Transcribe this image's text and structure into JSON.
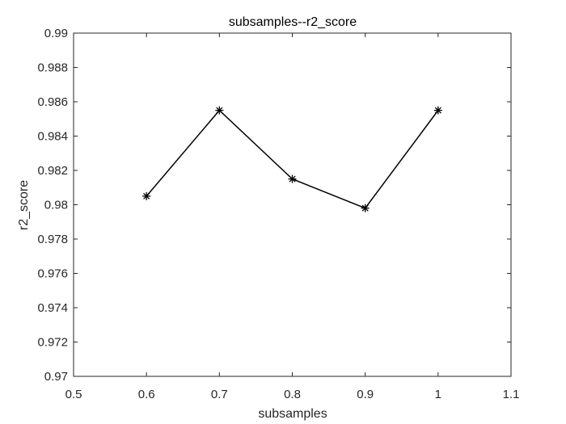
{
  "chart_data": {
    "type": "line",
    "title": "subsamples--r2_score",
    "xlabel": "subsamples",
    "ylabel": "r2_score",
    "xlim": [
      0.5,
      1.1
    ],
    "ylim": [
      0.97,
      0.99
    ],
    "xticks": [
      "0.5",
      "0.6",
      "0.7",
      "0.8",
      "0.9",
      "1",
      "1.1"
    ],
    "yticks": [
      "0.97",
      "0.972",
      "0.974",
      "0.976",
      "0.978",
      "0.98",
      "0.982",
      "0.984",
      "0.986",
      "0.988",
      "0.99"
    ],
    "grid": false,
    "box": true,
    "marker": "asterisk",
    "line_color": "#000000",
    "series": [
      {
        "x": [
          0.6,
          0.7,
          0.8,
          0.9,
          1.0
        ],
        "values": [
          0.9805,
          0.9855,
          0.9815,
          0.9798,
          0.9855
        ]
      }
    ]
  }
}
